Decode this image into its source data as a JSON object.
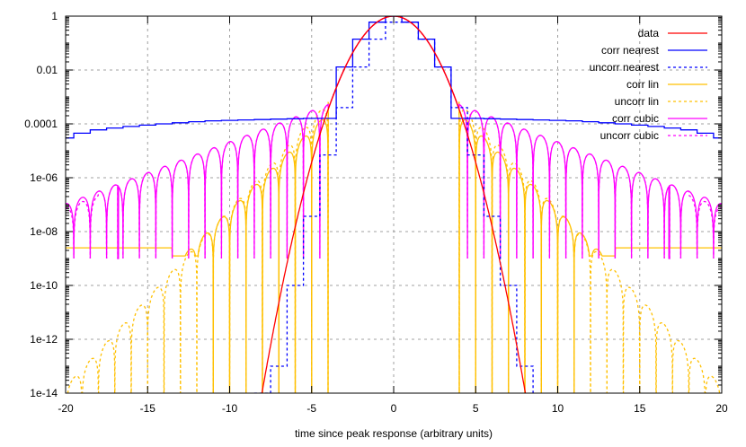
{
  "chart_data": {
    "type": "line",
    "title": "",
    "xlabel": "time since peak response (arbitrary units)",
    "ylabel": "",
    "xlim": [
      -20,
      20
    ],
    "ylim": [
      1e-14,
      1
    ],
    "yscale": "log",
    "grid": true,
    "legend_position": "top-right",
    "x_ticks": [
      -20,
      -15,
      -10,
      -5,
      0,
      5,
      10,
      15,
      20
    ],
    "x_tick_labels": [
      "-20",
      "-15",
      "-10",
      "-5",
      "0",
      "5",
      "10",
      "15",
      "20"
    ],
    "y_ticks": [
      1,
      0.01,
      0.0001,
      1e-06,
      1e-08,
      1e-10,
      1e-12,
      1e-14
    ],
    "y_tick_labels": [
      "1",
      "0.01",
      "0.0001",
      "1e-06",
      "1e-08",
      "1e-10",
      "1e-12",
      "1e-14"
    ],
    "series": [
      {
        "name": "data",
        "color": "#ff0000",
        "dash": "solid",
        "description": "Gaussian peak, exp(-x^2/2)",
        "x": [
          -8.3,
          -7,
          -6,
          -5,
          -4,
          -3,
          -2,
          -1,
          0,
          1,
          2,
          3,
          4,
          5,
          6,
          7,
          8.3
        ],
        "y": [
          1e-14,
          2.3e-11,
          1.5e-08,
          3.7e-06,
          0.00034,
          0.011,
          0.135,
          0.61,
          1,
          0.61,
          0.135,
          0.011,
          0.00034,
          3.7e-06,
          1.5e-08,
          2.3e-11,
          1e-14
        ]
      },
      {
        "name": "corr nearest",
        "color": "#0000ff",
        "dash": "solid",
        "description": "staircase; floor ~1e-4 to 3e-5 at edges",
        "x": [
          -20,
          -19.5,
          -18.5,
          -17.5,
          -16.5,
          -15.5,
          -14.5,
          -13.5,
          -12.5,
          -11.5,
          -10.5,
          -9.5,
          -8.5,
          -7.5,
          -6.5,
          -5.5,
          -4.5,
          -3.5,
          -2.5,
          -1.5,
          -0.5,
          0.5,
          1.5,
          2.5,
          3.5,
          4.5,
          5.5,
          6.5,
          7.5,
          8.5,
          9.5,
          10.5,
          11.5,
          12.5,
          13.5,
          14.5,
          15.5,
          16.5,
          17.5,
          18.5,
          19.5,
          20
        ],
        "y": [
          3e-05,
          4.5e-05,
          6e-05,
          7e-05,
          8e-05,
          9e-05,
          0.0001,
          0.00011,
          0.00012,
          0.00013,
          0.000135,
          0.00014,
          0.000145,
          0.00015,
          0.000155,
          0.00016,
          0.00016,
          0.013,
          0.14,
          0.6,
          1,
          0.6,
          0.14,
          0.013,
          0.00016,
          0.00016,
          0.000155,
          0.00015,
          0.000145,
          0.00014,
          0.000135,
          0.00013,
          0.00012,
          0.00011,
          0.0001,
          9e-05,
          8e-05,
          7e-05,
          6e-05,
          4.5e-05,
          3e-05,
          3e-05
        ]
      },
      {
        "name": "uncorr nearest",
        "color": "#0000ff",
        "dash": "dotted",
        "description": "staircase following Gaussian sampled at half-integers",
        "x": [
          -8.5,
          -7.5,
          -6.5,
          -5.5,
          -4.5,
          -3.5,
          -2.5,
          -1.5,
          -0.5,
          0.5,
          1.5,
          2.5,
          3.5,
          4.5,
          5.5,
          6.5,
          7.5,
          8.5
        ],
        "y": [
          1e-14,
          1e-13,
          1e-10,
          3.7e-08,
          7e-06,
          0.0004,
          0.013,
          0.14,
          0.6,
          0.6,
          0.14,
          0.013,
          0.0004,
          7e-06,
          3.7e-08,
          1e-10,
          1e-13,
          1e-14
        ]
      },
      {
        "name": "corr lin",
        "color": "#ffc000",
        "dash": "solid",
        "description": "ringing lobes decaying to flat floor ~2.5e-9 for |x|>14",
        "floor": 2.5e-09
      },
      {
        "name": "uncorr lin",
        "color": "#ffc000",
        "dash": "dotted",
        "description": "ringing lobes decaying to ~1e-14 at |x|=20"
      },
      {
        "name": "corr cubic",
        "color": "#ff00ff",
        "dash": "solid",
        "description": "ringing lobes peaking ~2e-4 near |x|=5 down to ~1e-7 at |x|=20, deep notch at |x|~16.8"
      },
      {
        "name": "uncorr cubic",
        "color": "#ff00ff",
        "dash": "dotted",
        "description": "nearly identical to corr cubic, deviates at |x|>18"
      }
    ]
  },
  "legend": {
    "items": [
      {
        "label": "data",
        "color": "#ff0000",
        "dash": "solid"
      },
      {
        "label": "corr nearest",
        "color": "#0000ff",
        "dash": "solid"
      },
      {
        "label": "uncorr nearest",
        "color": "#0000ff",
        "dash": "dotted"
      },
      {
        "label": "corr lin",
        "color": "#ffc000",
        "dash": "solid"
      },
      {
        "label": "uncorr lin",
        "color": "#ffc000",
        "dash": "dotted"
      },
      {
        "label": "corr cubic",
        "color": "#ff00ff",
        "dash": "solid"
      },
      {
        "label": "uncorr cubic",
        "color": "#ff00ff",
        "dash": "dotted"
      }
    ]
  }
}
